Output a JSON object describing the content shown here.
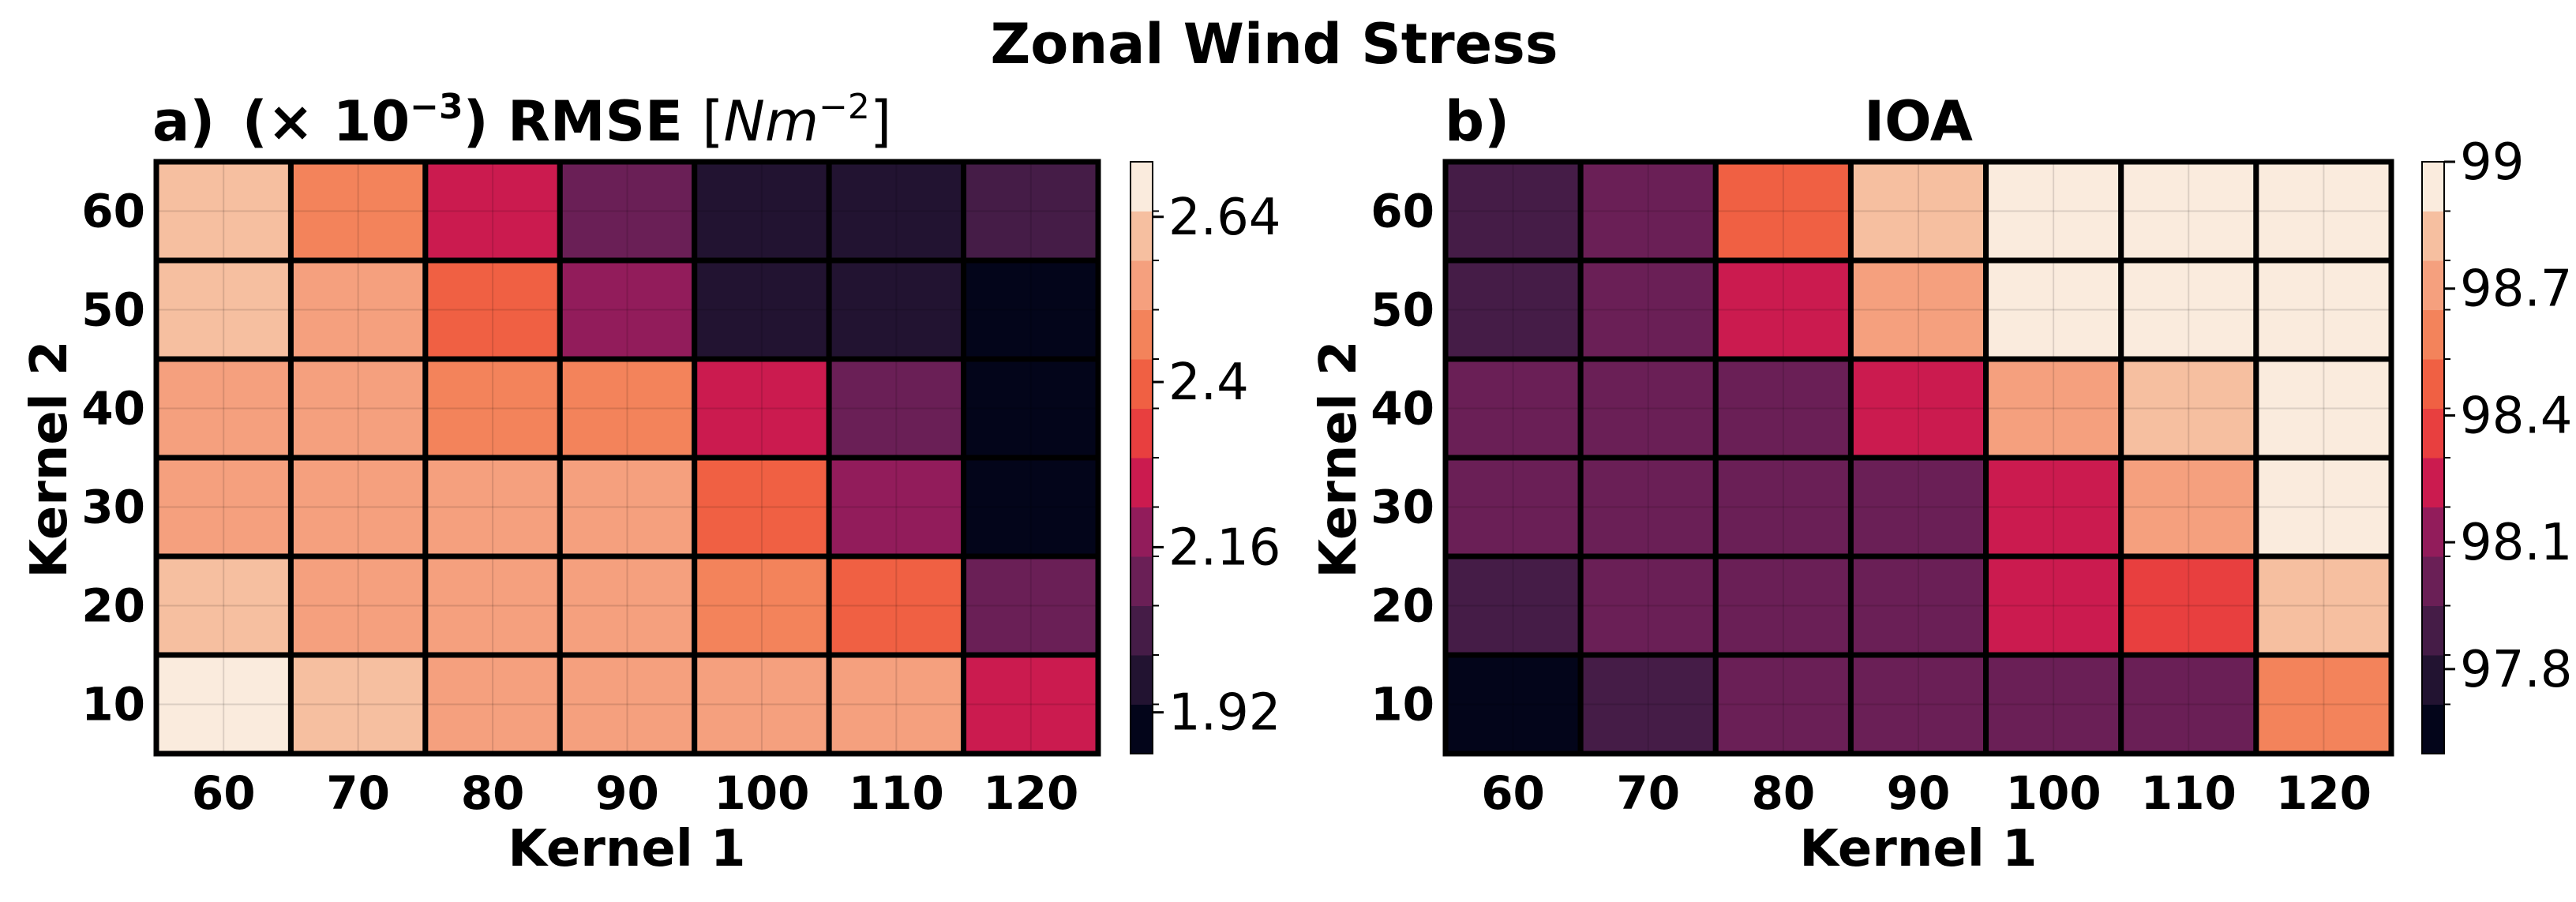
{
  "figure": {
    "title": "Zonal Wind Stress"
  },
  "chart_data": [
    {
      "type": "heatmap",
      "panel_label": "a)",
      "title_prefix": "(× 10",
      "title_exp": "−3",
      "title_mid": ") RMSE ",
      "title_unit_open": "[",
      "title_unit_base": "Nm",
      "title_unit_exp": "−2",
      "title_unit_close": "]",
      "xlabel": "Kernel 1",
      "ylabel": "Kernel 2",
      "x_categories": [
        "60",
        "70",
        "80",
        "90",
        "100",
        "110",
        "120"
      ],
      "y_categories": [
        "10",
        "20",
        "30",
        "40",
        "50",
        "60"
      ],
      "values_by_row_top_to_bottom": [
        [
          2.58,
          2.5,
          2.29,
          2.09,
          1.98,
          1.97,
          2.02
        ],
        [
          2.58,
          2.51,
          2.43,
          2.19,
          1.98,
          1.99,
          1.89
        ],
        [
          2.51,
          2.51,
          2.5,
          2.44,
          2.24,
          2.09,
          1.89
        ],
        [
          2.51,
          2.52,
          2.52,
          2.53,
          2.43,
          2.18,
          1.89
        ],
        [
          2.59,
          2.51,
          2.52,
          2.51,
          2.5,
          2.38,
          2.09
        ],
        [
          2.68,
          2.59,
          2.51,
          2.51,
          2.51,
          2.51,
          2.28
        ]
      ],
      "colorbar": {
        "range": [
          1.86,
          2.72
        ],
        "ticks": [
          "1.92",
          "2.16",
          "2.4",
          "2.64"
        ],
        "tick_values": [
          1.92,
          2.16,
          2.4,
          2.64
        ]
      }
    },
    {
      "type": "heatmap",
      "panel_label": "b)",
      "title": "IOA",
      "xlabel": "Kernel 1",
      "ylabel": "Kernel 2",
      "x_categories": [
        "60",
        "70",
        "80",
        "90",
        "100",
        "110",
        "120"
      ],
      "y_categories": [
        "10",
        "20",
        "30",
        "40",
        "50",
        "60"
      ],
      "values_by_row_top_to_bottom": [
        [
          97.9,
          98.05,
          98.5,
          98.8,
          99.0,
          99.0,
          98.95
        ],
        [
          97.9,
          98.05,
          98.2,
          98.65,
          99.0,
          99.0,
          99.0
        ],
        [
          98.05,
          98.05,
          98.05,
          98.2,
          98.65,
          98.8,
          99.0
        ],
        [
          98.05,
          98.05,
          98.05,
          98.05,
          98.2,
          98.65,
          99.0
        ],
        [
          97.9,
          98.05,
          98.05,
          98.05,
          98.2,
          98.35,
          98.8
        ],
        [
          97.7,
          97.9,
          98.05,
          98.05,
          98.05,
          98.05,
          98.55
        ]
      ],
      "colorbar": {
        "range": [
          97.6,
          99.0
        ],
        "ticks": [
          "97.8",
          "98.1",
          "98.4",
          "98.7",
          "99"
        ],
        "tick_values": [
          97.8,
          98.1,
          98.4,
          98.7,
          99.0
        ]
      }
    }
  ],
  "colormap": [
    "#03051a",
    "#221331",
    "#451c47",
    "#6a1f56",
    "#921c5b",
    "#cb1b4f",
    "#e83f3f",
    "#f06043",
    "#f3835b",
    "#f5a07e",
    "#f6bfa0",
    "#faebdd"
  ]
}
